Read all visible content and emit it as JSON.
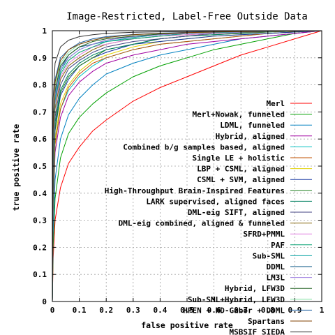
{
  "chart_data": {
    "type": "line",
    "title": "Image-Restricted, Label-Free Outside Data",
    "xlabel": "false positive rate",
    "ylabel": "true positive rate",
    "xlim": [
      0,
      1
    ],
    "ylim": [
      0,
      1
    ],
    "xticks": [
      "0",
      "0.1",
      "0.2",
      "0.3",
      "0.4",
      "0.5",
      "0.6",
      "0.7",
      "0.8",
      "0.9",
      "1"
    ],
    "yticks": [
      "0",
      "0.1",
      "0.2",
      "0.3",
      "0.4",
      "0.5",
      "0.6",
      "0.7",
      "0.8",
      "0.9",
      "1"
    ],
    "grid": true,
    "legend_position": "bottom-right",
    "series": [
      {
        "name": "Merl",
        "color": "#ff0000",
        "x": [
          0,
          0.003,
          0.01,
          0.03,
          0.06,
          0.1,
          0.15,
          0.2,
          0.3,
          0.4,
          0.5,
          0.6,
          0.7,
          0.8,
          0.9,
          1
        ],
        "y": [
          0,
          0.16,
          0.3,
          0.42,
          0.51,
          0.57,
          0.63,
          0.67,
          0.74,
          0.79,
          0.83,
          0.87,
          0.91,
          0.94,
          0.97,
          1
        ]
      },
      {
        "name": "Merl+Nowak, funneled",
        "color": "#00a000",
        "x": [
          0,
          0.003,
          0.01,
          0.03,
          0.06,
          0.1,
          0.15,
          0.2,
          0.3,
          0.4,
          0.5,
          0.6,
          0.7,
          0.8,
          0.9,
          1
        ],
        "y": [
          0,
          0.2,
          0.38,
          0.53,
          0.62,
          0.68,
          0.73,
          0.77,
          0.83,
          0.87,
          0.9,
          0.93,
          0.95,
          0.97,
          0.99,
          1
        ]
      },
      {
        "name": "LDML, funneled",
        "color": "#0080c0",
        "x": [
          0,
          0.003,
          0.01,
          0.03,
          0.06,
          0.1,
          0.15,
          0.2,
          0.3,
          0.4,
          0.5,
          0.6,
          0.7,
          0.8,
          0.9,
          1
        ],
        "y": [
          0,
          0.25,
          0.45,
          0.6,
          0.69,
          0.75,
          0.8,
          0.84,
          0.88,
          0.91,
          0.93,
          0.95,
          0.97,
          0.98,
          0.99,
          1
        ]
      },
      {
        "name": "Hybrid, aligned",
        "color": "#a000a0",
        "x": [
          0,
          0.003,
          0.01,
          0.03,
          0.06,
          0.1,
          0.15,
          0.2,
          0.3,
          0.4,
          0.5,
          0.6,
          0.7,
          0.8,
          0.9,
          1
        ],
        "y": [
          0,
          0.32,
          0.55,
          0.68,
          0.76,
          0.81,
          0.85,
          0.88,
          0.91,
          0.93,
          0.95,
          0.96,
          0.97,
          0.98,
          0.99,
          1
        ]
      },
      {
        "name": "Combined b/g samples based, aligned",
        "color": "#00c0c0",
        "x": [
          0,
          0.003,
          0.01,
          0.03,
          0.06,
          0.1,
          0.15,
          0.2,
          0.3,
          0.4,
          0.5,
          0.6,
          0.7,
          0.8,
          0.9,
          1
        ],
        "y": [
          0,
          0.35,
          0.58,
          0.71,
          0.78,
          0.83,
          0.87,
          0.9,
          0.93,
          0.95,
          0.96,
          0.97,
          0.98,
          0.99,
          0.995,
          1
        ]
      },
      {
        "name": "Single LE + holistic",
        "color": "#c05000",
        "x": [
          0,
          0.003,
          0.01,
          0.03,
          0.06,
          0.1,
          0.15,
          0.2,
          0.3,
          0.4,
          0.5,
          0.6,
          0.7,
          0.8,
          0.9,
          1
        ],
        "y": [
          0,
          0.36,
          0.58,
          0.71,
          0.79,
          0.84,
          0.88,
          0.9,
          0.93,
          0.95,
          0.96,
          0.97,
          0.98,
          0.99,
          0.995,
          1
        ]
      },
      {
        "name": "LBP + CSML, aligned",
        "color": "#e0d000",
        "x": [
          0,
          0.003,
          0.01,
          0.03,
          0.06,
          0.1,
          0.15,
          0.2,
          0.3,
          0.4,
          0.5,
          0.6,
          0.7,
          0.8,
          0.9,
          1
        ],
        "y": [
          0,
          0.38,
          0.6,
          0.73,
          0.8,
          0.85,
          0.89,
          0.91,
          0.94,
          0.96,
          0.97,
          0.98,
          0.985,
          0.99,
          0.995,
          1
        ]
      },
      {
        "name": "CSML + SVM, aligned",
        "color": "#1030a0",
        "x": [
          0,
          0.003,
          0.01,
          0.03,
          0.06,
          0.1,
          0.15,
          0.2,
          0.3,
          0.4,
          0.5,
          0.6,
          0.7,
          0.8,
          0.9,
          1
        ],
        "y": [
          0,
          0.4,
          0.63,
          0.76,
          0.82,
          0.87,
          0.9,
          0.92,
          0.95,
          0.96,
          0.97,
          0.98,
          0.985,
          0.99,
          0.995,
          1
        ]
      },
      {
        "name": "High-Throughput Brain-Inspired Features",
        "color": "#208020",
        "x": [
          0,
          0.003,
          0.01,
          0.03,
          0.06,
          0.1,
          0.15,
          0.2,
          0.3,
          0.4,
          0.5,
          0.6,
          0.7,
          0.8,
          0.9,
          1
        ],
        "y": [
          0,
          0.42,
          0.64,
          0.77,
          0.83,
          0.87,
          0.9,
          0.93,
          0.95,
          0.97,
          0.98,
          0.985,
          0.99,
          0.995,
          0.998,
          1
        ]
      },
      {
        "name": "LARK supervised, aligned faces",
        "color": "#008060",
        "x": [
          0,
          0.003,
          0.01,
          0.03,
          0.06,
          0.1,
          0.15,
          0.2,
          0.3,
          0.4,
          0.5,
          0.6,
          0.7,
          0.8,
          0.9,
          1
        ],
        "y": [
          0,
          0.44,
          0.66,
          0.78,
          0.84,
          0.88,
          0.91,
          0.93,
          0.95,
          0.97,
          0.98,
          0.985,
          0.99,
          0.995,
          0.998,
          1
        ]
      },
      {
        "name": "DML-eig SIFT, aligned",
        "color": "#404080",
        "x": [
          0,
          0.003,
          0.01,
          0.03,
          0.06,
          0.1,
          0.15,
          0.2,
          0.3,
          0.4,
          0.5,
          0.6,
          0.7,
          0.8,
          0.9,
          1
        ],
        "y": [
          0,
          0.46,
          0.68,
          0.8,
          0.86,
          0.89,
          0.92,
          0.94,
          0.96,
          0.97,
          0.98,
          0.99,
          0.993,
          0.996,
          0.998,
          1
        ]
      },
      {
        "name": "DML-eig combined, aligned & funneled",
        "color": "#806000",
        "x": [
          0,
          0.003,
          0.01,
          0.03,
          0.06,
          0.1,
          0.15,
          0.2,
          0.3,
          0.4,
          0.5,
          0.6,
          0.7,
          0.8,
          0.9,
          1
        ],
        "y": [
          0,
          0.5,
          0.71,
          0.82,
          0.87,
          0.9,
          0.93,
          0.95,
          0.97,
          0.98,
          0.985,
          0.99,
          0.993,
          0.996,
          0.998,
          1
        ]
      },
      {
        "name": "SFRD+PMML",
        "color": "#e080e0",
        "x": [
          0,
          0.003,
          0.01,
          0.03,
          0.06,
          0.1,
          0.15,
          0.2,
          0.3,
          0.4,
          0.5,
          0.6,
          0.7,
          0.8,
          0.9,
          1
        ],
        "y": [
          0,
          0.52,
          0.73,
          0.83,
          0.88,
          0.91,
          0.94,
          0.95,
          0.97,
          0.98,
          0.985,
          0.99,
          0.994,
          0.997,
          0.999,
          1
        ]
      },
      {
        "name": "PAF",
        "color": "#00a070",
        "x": [
          0,
          0.003,
          0.01,
          0.03,
          0.06,
          0.1,
          0.15,
          0.2,
          0.3,
          0.4,
          0.5,
          0.6,
          0.7,
          0.8,
          0.9,
          1
        ],
        "y": [
          0,
          0.54,
          0.74,
          0.84,
          0.89,
          0.92,
          0.94,
          0.96,
          0.97,
          0.98,
          0.99,
          0.993,
          0.995,
          0.997,
          0.999,
          1
        ]
      },
      {
        "name": "Sub-SML",
        "color": "#00a0a0",
        "x": [
          0,
          0.003,
          0.01,
          0.03,
          0.06,
          0.1,
          0.15,
          0.2,
          0.3,
          0.4,
          0.5,
          0.6,
          0.7,
          0.8,
          0.9,
          1
        ],
        "y": [
          0,
          0.56,
          0.75,
          0.85,
          0.9,
          0.93,
          0.95,
          0.96,
          0.975,
          0.985,
          0.99,
          0.993,
          0.995,
          0.997,
          0.999,
          1
        ]
      },
      {
        "name": "DDML",
        "color": "#005080",
        "x": [
          0,
          0.003,
          0.01,
          0.03,
          0.06,
          0.1,
          0.15,
          0.2,
          0.3,
          0.4,
          0.5,
          0.6,
          0.7,
          0.8,
          0.9,
          1
        ],
        "y": [
          0,
          0.58,
          0.77,
          0.86,
          0.91,
          0.94,
          0.95,
          0.965,
          0.98,
          0.985,
          0.99,
          0.994,
          0.996,
          0.998,
          0.999,
          1
        ]
      },
      {
        "name": "LM3L",
        "color": "#a080e0",
        "x": [
          0,
          0.003,
          0.01,
          0.03,
          0.06,
          0.1,
          0.15,
          0.2,
          0.3,
          0.4,
          0.5,
          0.6,
          0.7,
          0.8,
          0.9,
          1
        ],
        "y": [
          0,
          0.57,
          0.76,
          0.86,
          0.9,
          0.93,
          0.95,
          0.965,
          0.978,
          0.985,
          0.99,
          0.994,
          0.996,
          0.998,
          0.999,
          1
        ]
      },
      {
        "name": "Hybrid, LFW3D",
        "color": "#206020",
        "x": [
          0,
          0.003,
          0.01,
          0.03,
          0.06,
          0.1,
          0.15,
          0.2,
          0.3,
          0.4,
          0.5,
          0.6,
          0.7,
          0.8,
          0.9,
          1
        ],
        "y": [
          0,
          0.6,
          0.78,
          0.87,
          0.91,
          0.94,
          0.96,
          0.97,
          0.98,
          0.988,
          0.992,
          0.995,
          0.997,
          0.998,
          0.999,
          1
        ]
      },
      {
        "name": "Sub-SML+Hybrid, LFW3D",
        "color": "#80e0a0",
        "x": [
          0,
          0.003,
          0.01,
          0.03,
          0.06,
          0.1,
          0.15,
          0.2,
          0.3,
          0.4,
          0.5,
          0.6,
          0.7,
          0.8,
          0.9,
          1
        ],
        "y": [
          0,
          0.62,
          0.8,
          0.88,
          0.92,
          0.95,
          0.965,
          0.975,
          0.985,
          0.99,
          0.993,
          0.995,
          0.997,
          0.998,
          0.999,
          1
        ]
      },
      {
        "name": "HPEN + HD-Gabor + DDML",
        "color": "#2060a0",
        "x": [
          0,
          0.003,
          0.01,
          0.03,
          0.06,
          0.1,
          0.15,
          0.2,
          0.3,
          0.4,
          0.5,
          0.6,
          0.7,
          0.8,
          0.9,
          1
        ],
        "y": [
          0,
          0.64,
          0.82,
          0.9,
          0.93,
          0.955,
          0.97,
          0.978,
          0.986,
          0.991,
          0.994,
          0.996,
          0.997,
          0.998,
          0.999,
          1
        ]
      },
      {
        "name": "Spartans",
        "color": "#804000",
        "x": [
          0,
          0.003,
          0.01,
          0.03,
          0.06,
          0.1,
          0.15,
          0.2,
          0.3,
          0.4,
          0.5,
          0.6,
          0.7,
          0.8,
          0.9,
          1
        ],
        "y": [
          0,
          0.63,
          0.81,
          0.89,
          0.93,
          0.95,
          0.965,
          0.975,
          0.985,
          0.99,
          0.993,
          0.995,
          0.997,
          0.998,
          0.999,
          1
        ]
      },
      {
        "name": "MSBSIF SIEDA",
        "color": "#303030",
        "x": [
          0,
          0.003,
          0.01,
          0.03,
          0.06,
          0.1,
          0.15,
          0.2,
          0.3,
          0.4,
          0.5,
          0.6,
          0.7,
          0.8,
          0.9,
          1
        ],
        "y": [
          0,
          0.75,
          0.88,
          0.94,
          0.965,
          0.978,
          0.985,
          0.99,
          0.994,
          0.996,
          0.997,
          0.998,
          0.999,
          0.999,
          1,
          1
        ]
      }
    ]
  }
}
